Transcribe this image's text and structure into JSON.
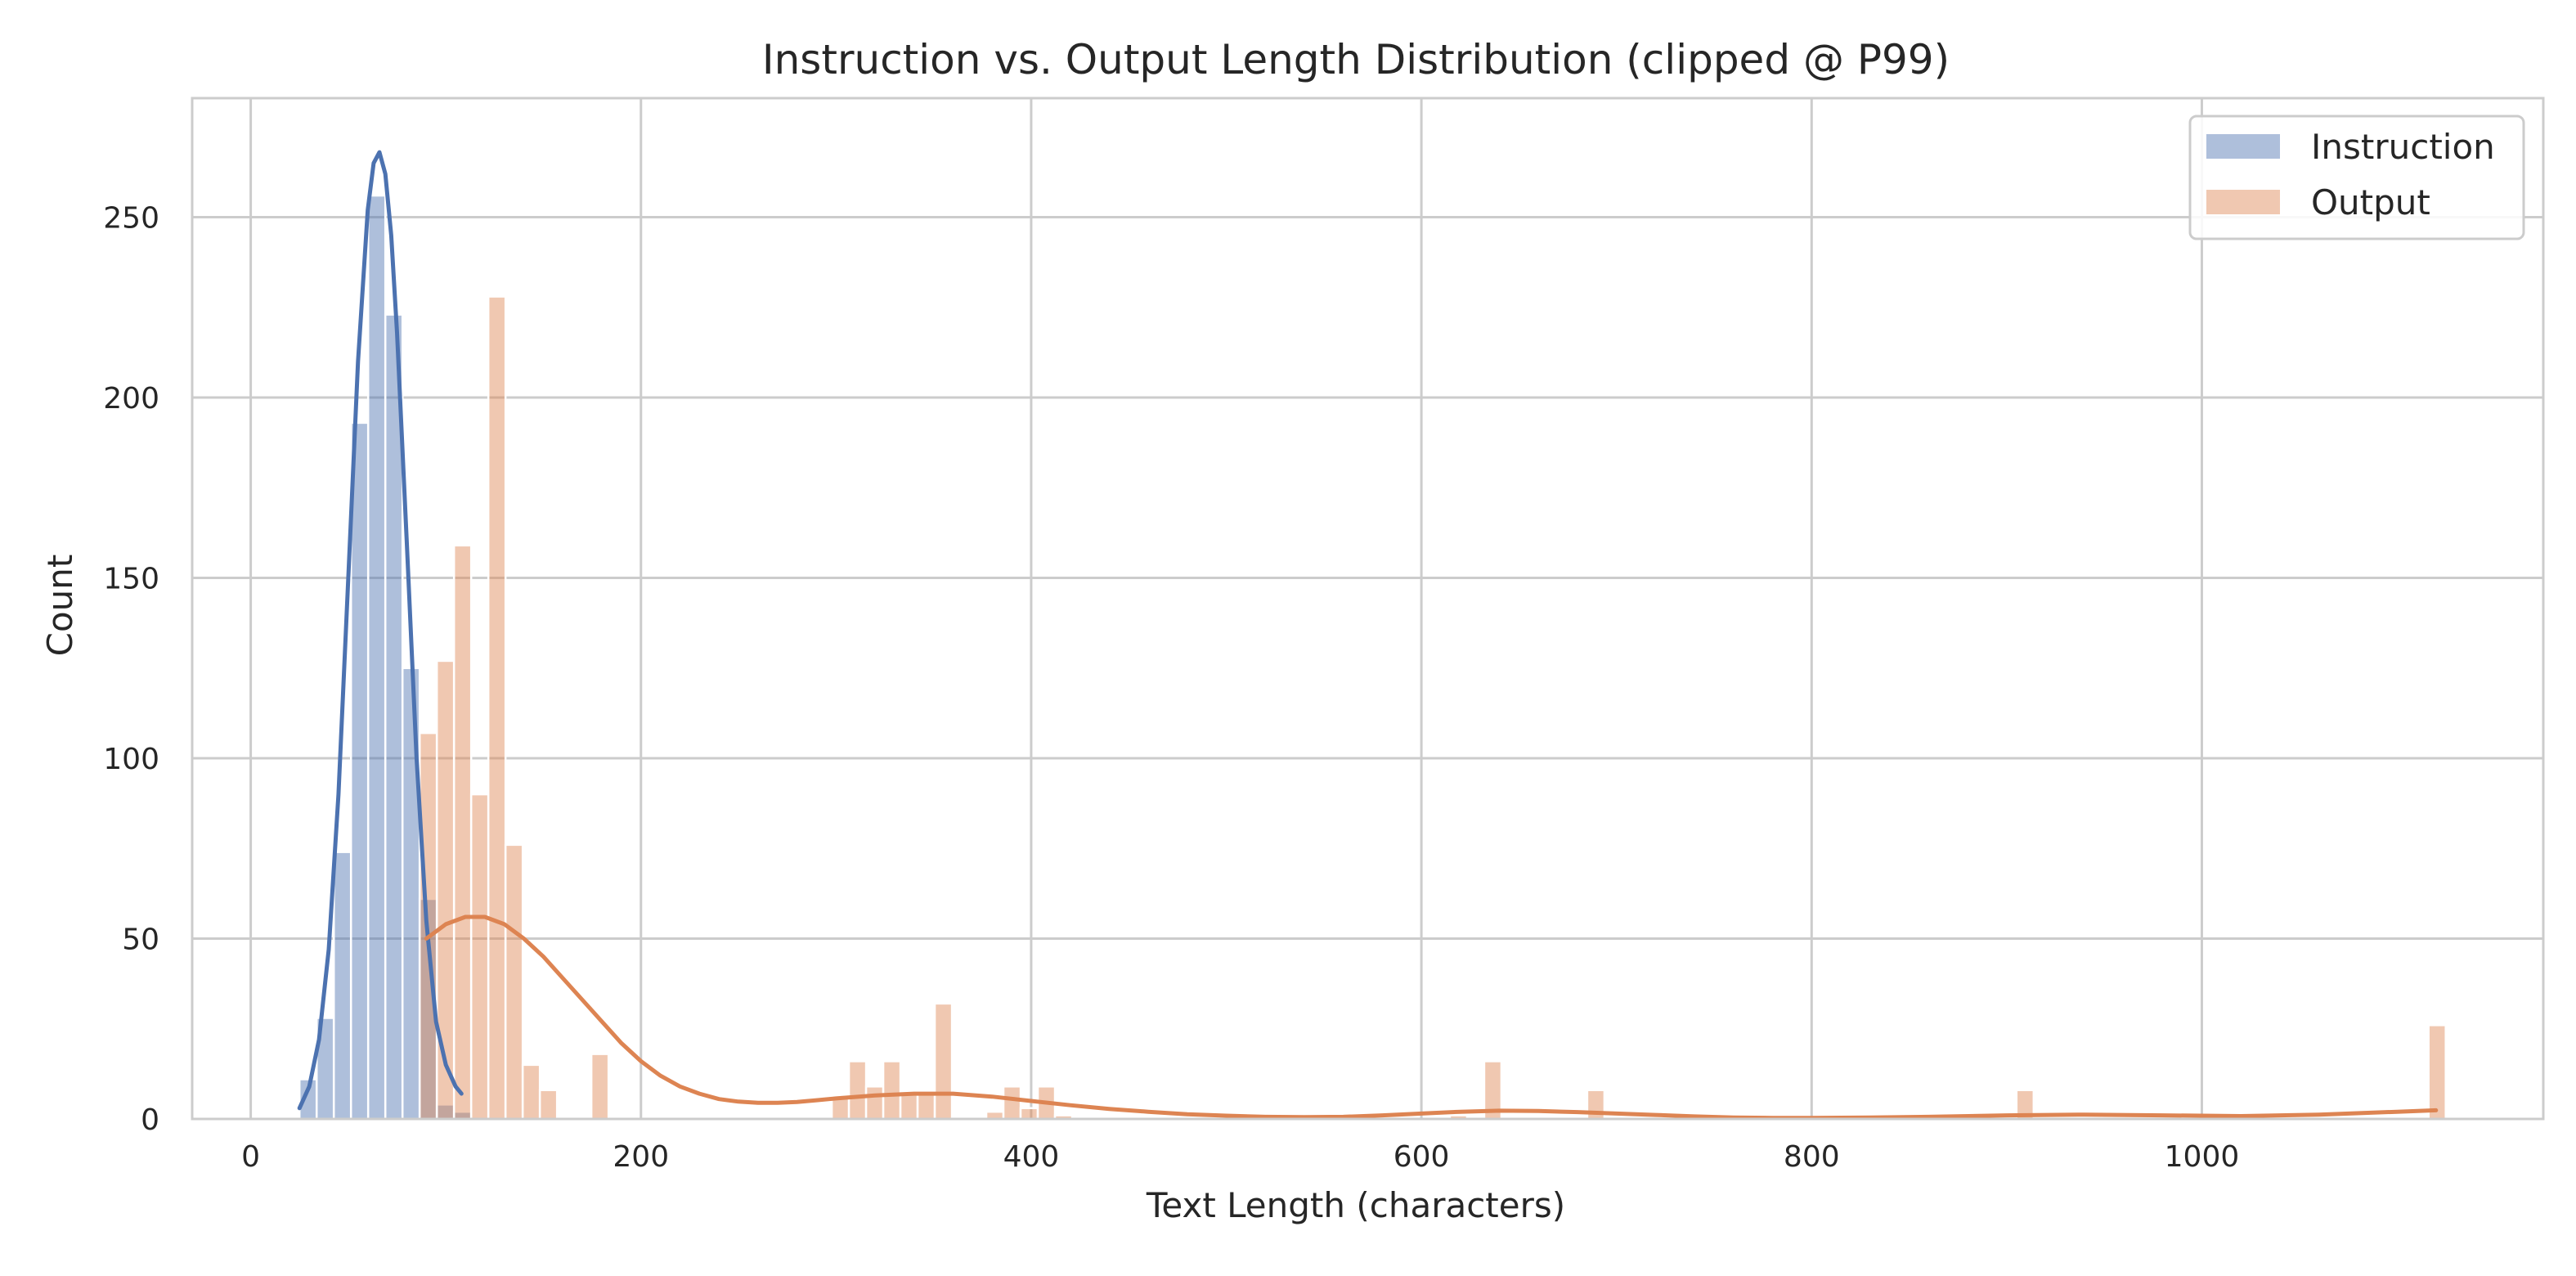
{
  "chart_data": {
    "type": "bar",
    "subtype": "histogram_with_kde",
    "title": "Instruction vs. Output Length Distribution (clipped @ P99)",
    "xlabel": "Text Length (characters)",
    "ylabel": "Count",
    "xlim": [
      -30,
      1175
    ],
    "ylim": [
      0,
      283
    ],
    "xticks": [
      0,
      200,
      400,
      600,
      800,
      1000
    ],
    "yticks": [
      0,
      50,
      100,
      150,
      200,
      250
    ],
    "grid": true,
    "legend_position": "top-right",
    "bin_width": 8.8,
    "series": [
      {
        "name": "Instruction",
        "color": "#4c72b0",
        "bar_opacity": 0.45,
        "bins": [
          {
            "x0": 25.0,
            "count": 11
          },
          {
            "x0": 33.8,
            "count": 28
          },
          {
            "x0": 42.6,
            "count": 74
          },
          {
            "x0": 51.4,
            "count": 193
          },
          {
            "x0": 60.2,
            "count": 256
          },
          {
            "x0": 69.0,
            "count": 223
          },
          {
            "x0": 77.8,
            "count": 125
          },
          {
            "x0": 86.6,
            "count": 61
          },
          {
            "x0": 95.4,
            "count": 4
          },
          {
            "x0": 104.2,
            "count": 2
          }
        ],
        "kde": {
          "x": [
            25,
            30,
            35,
            40,
            45,
            50,
            55,
            60,
            63,
            66,
            69,
            72,
            75,
            80,
            85,
            90,
            95,
            100,
            105,
            108
          ],
          "y": [
            3,
            9,
            22,
            47,
            90,
            150,
            210,
            252,
            265,
            268,
            262,
            245,
            218,
            160,
            100,
            55,
            27,
            15,
            9,
            7
          ]
        }
      },
      {
        "name": "Output",
        "color": "#dd8452",
        "bar_opacity": 0.45,
        "bins": [
          {
            "x0": 86.6,
            "count": 107
          },
          {
            "x0": 95.4,
            "count": 127
          },
          {
            "x0": 104.2,
            "count": 159
          },
          {
            "x0": 113.0,
            "count": 90
          },
          {
            "x0": 121.8,
            "count": 228
          },
          {
            "x0": 130.6,
            "count": 76
          },
          {
            "x0": 139.4,
            "count": 15
          },
          {
            "x0": 148.2,
            "count": 8
          },
          {
            "x0": 174.6,
            "count": 18
          },
          {
            "x0": 297.8,
            "count": 6
          },
          {
            "x0": 306.6,
            "count": 16
          },
          {
            "x0": 315.4,
            "count": 9
          },
          {
            "x0": 324.2,
            "count": 16
          },
          {
            "x0": 333.0,
            "count": 7
          },
          {
            "x0": 341.8,
            "count": 7
          },
          {
            "x0": 350.6,
            "count": 32
          },
          {
            "x0": 377.0,
            "count": 2
          },
          {
            "x0": 385.8,
            "count": 9
          },
          {
            "x0": 394.6,
            "count": 3
          },
          {
            "x0": 403.4,
            "count": 9
          },
          {
            "x0": 412.2,
            "count": 1
          },
          {
            "x0": 614.6,
            "count": 1
          },
          {
            "x0": 632.2,
            "count": 16
          },
          {
            "x0": 685.0,
            "count": 8
          },
          {
            "x0": 905.0,
            "count": 8
          },
          {
            "x0": 1116.2,
            "count": 26
          }
        ],
        "kde": {
          "x": [
            90,
            100,
            110,
            120,
            130,
            140,
            150,
            160,
            170,
            180,
            190,
            200,
            210,
            220,
            230,
            240,
            250,
            260,
            270,
            280,
            290,
            300,
            320,
            340,
            360,
            380,
            400,
            420,
            440,
            460,
            480,
            500,
            520,
            540,
            560,
            580,
            600,
            620,
            640,
            660,
            680,
            700,
            720,
            740,
            760,
            780,
            800,
            830,
            860,
            900,
            940,
            980,
            1020,
            1060,
            1100,
            1120
          ],
          "y": [
            50,
            54,
            56,
            56,
            54,
            50,
            45,
            39,
            33,
            27,
            21,
            16,
            12,
            9,
            7,
            5.5,
            4.8,
            4.5,
            4.5,
            4.7,
            5.2,
            5.7,
            6.5,
            7,
            7,
            6.2,
            5,
            3.8,
            2.8,
            2,
            1.3,
            0.9,
            0.6,
            0.5,
            0.6,
            1,
            1.5,
            2,
            2.3,
            2.2,
            1.9,
            1.5,
            1.1,
            0.7,
            0.4,
            0.3,
            0.3,
            0.4,
            0.6,
            1,
            1.2,
            1,
            0.8,
            1.2,
            2,
            2.4
          ]
        }
      }
    ]
  }
}
